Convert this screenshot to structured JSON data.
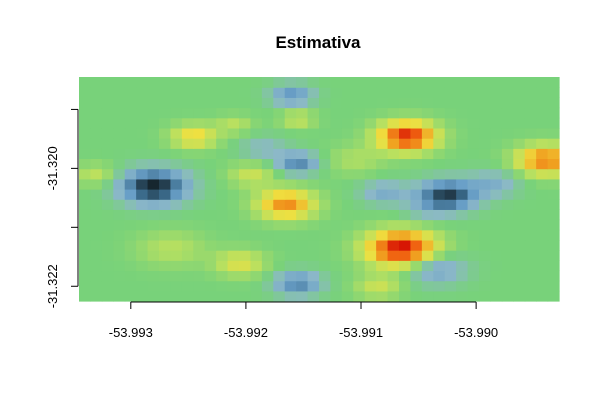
{
  "chart_data": {
    "type": "heatmap",
    "title": "Estimativa",
    "xlabel": "",
    "ylabel": "",
    "xlim": [
      -53.99345,
      -53.98928
    ],
    "ylim": [
      -31.32225,
      -31.31845
    ],
    "x_ticks": [
      -53.993,
      -53.992,
      -53.991,
      -53.99
    ],
    "x_tick_labels": [
      "-53.993",
      "-53.992",
      "-53.991",
      "-53.990"
    ],
    "y_ticks": [
      -31.322,
      -31.321,
      -31.32,
      -31.319
    ],
    "y_tick_labels": [
      "-31.322",
      "",
      "-31.320",
      ""
    ],
    "grid": false,
    "legend": "none",
    "color_scale": [
      "#000000",
      "#1e3340",
      "#3a6a8a",
      "#6aa0c8",
      "#8cb8c8",
      "#78d27a",
      "#b8e060",
      "#f0e040",
      "#f0a020",
      "#f06010",
      "#d00000"
    ],
    "grid_cols": 42,
    "grid_rows": 22,
    "hotspots": [
      {
        "x": -53.9928,
        "y": -31.3203,
        "v": -2.6,
        "r": 0.00028
      },
      {
        "x": -53.99245,
        "y": -31.31945,
        "v": 1.3,
        "r": 0.0002
      },
      {
        "x": -53.99265,
        "y": -31.32135,
        "v": 0.6,
        "r": 0.0003
      },
      {
        "x": -53.9933,
        "y": -31.3201,
        "v": 0.7,
        "r": 0.00018
      },
      {
        "x": -53.99185,
        "y": -31.31965,
        "v": -0.6,
        "r": 0.0002
      },
      {
        "x": -53.99195,
        "y": -31.3201,
        "v": 0.8,
        "r": 0.0002
      },
      {
        "x": -53.99205,
        "y": -31.3216,
        "v": 1.0,
        "r": 0.00022
      },
      {
        "x": -53.9921,
        "y": -31.31925,
        "v": 0.6,
        "r": 0.00016
      },
      {
        "x": -53.99165,
        "y": -31.3206,
        "v": 2.0,
        "r": 0.00025
      },
      {
        "x": -53.99155,
        "y": -31.3199,
        "v": -1.5,
        "r": 0.00018
      },
      {
        "x": -53.99155,
        "y": -31.32195,
        "v": -1.5,
        "r": 0.0002
      },
      {
        "x": -53.9916,
        "y": -31.31875,
        "v": -1.3,
        "r": 0.00018
      },
      {
        "x": -53.99155,
        "y": -31.31915,
        "v": 0.8,
        "r": 0.00015
      },
      {
        "x": -53.99105,
        "y": -31.31985,
        "v": 0.5,
        "r": 0.00025
      },
      {
        "x": -53.9906,
        "y": -31.31945,
        "v": 2.8,
        "r": 0.00025
      },
      {
        "x": -53.9908,
        "y": -31.3204,
        "v": -0.9,
        "r": 0.0002
      },
      {
        "x": -53.99065,
        "y": -31.32135,
        "v": 3.0,
        "r": 0.0003
      },
      {
        "x": -53.99085,
        "y": -31.322,
        "v": 0.8,
        "r": 0.0002
      },
      {
        "x": -53.99045,
        "y": -31.3207,
        "v": -0.4,
        "r": 0.0002
      },
      {
        "x": -53.99025,
        "y": -31.32045,
        "v": -2.3,
        "r": 0.00025
      },
      {
        "x": -53.99035,
        "y": -31.3217,
        "v": -1.1,
        "r": 0.00025
      },
      {
        "x": -53.98985,
        "y": -31.32025,
        "v": -0.8,
        "r": 0.00022
      },
      {
        "x": -53.9894,
        "y": -31.31985,
        "v": 2.1,
        "r": 0.00025
      }
    ]
  }
}
